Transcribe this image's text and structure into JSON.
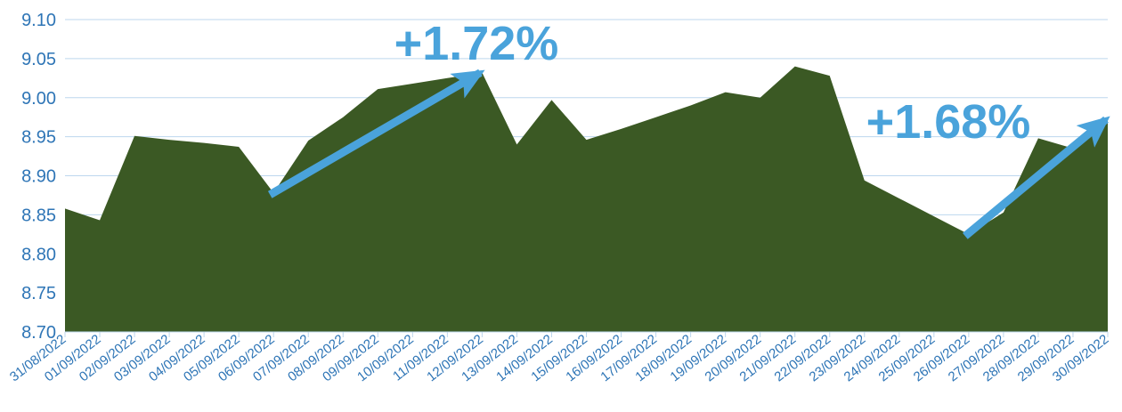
{
  "chart_data": {
    "type": "area",
    "title": "",
    "xlabel": "",
    "ylabel": "",
    "ylim": [
      8.7,
      9.1
    ],
    "yticks": [
      "8.70",
      "8.75",
      "8.80",
      "8.85",
      "8.90",
      "8.95",
      "9.00",
      "9.05",
      "9.10"
    ],
    "grid": true,
    "x": [
      "31/08/2022",
      "01/09/2022",
      "02/09/2022",
      "03/09/2022",
      "04/09/2022",
      "05/09/2022",
      "06/09/2022",
      "07/09/2022",
      "08/09/2022",
      "09/09/2022",
      "10/09/2022",
      "11/09/2022",
      "12/09/2022",
      "13/09/2022",
      "14/09/2022",
      "15/09/2022",
      "16/09/2022",
      "17/09/2022",
      "18/09/2022",
      "19/09/2022",
      "20/09/2022",
      "21/09/2022",
      "22/09/2022",
      "23/09/2022",
      "24/09/2022",
      "25/09/2022",
      "26/09/2022",
      "27/09/2022",
      "28/09/2022",
      "29/09/2022",
      "30/09/2022"
    ],
    "series": [
      {
        "values": [
          8.858,
          8.843,
          8.951,
          8.946,
          8.942,
          8.937,
          8.878,
          8.945,
          8.975,
          9.011,
          9.018,
          9.025,
          9.032,
          8.94,
          8.997,
          8.946,
          8.96,
          8.975,
          8.99,
          9.007,
          9.0,
          9.04,
          9.028,
          8.894,
          8.871,
          8.848,
          8.825,
          8.853,
          8.948,
          8.935,
          8.972
        ],
        "color": "#3B5924"
      }
    ],
    "annotations": [
      {
        "text": "+1.72%",
        "from": "06/09/2022",
        "to": "12/09/2022",
        "color": "#4AA3DB"
      },
      {
        "text": "+1.68%",
        "from": "26/09/2022",
        "to": "30/09/2022",
        "color": "#4AA3DB"
      }
    ],
    "colors": {
      "area": "#3B5924",
      "grid": "#BDD7EE",
      "ticks": "#2E75B6",
      "arrow": "#4AA3DB"
    }
  }
}
